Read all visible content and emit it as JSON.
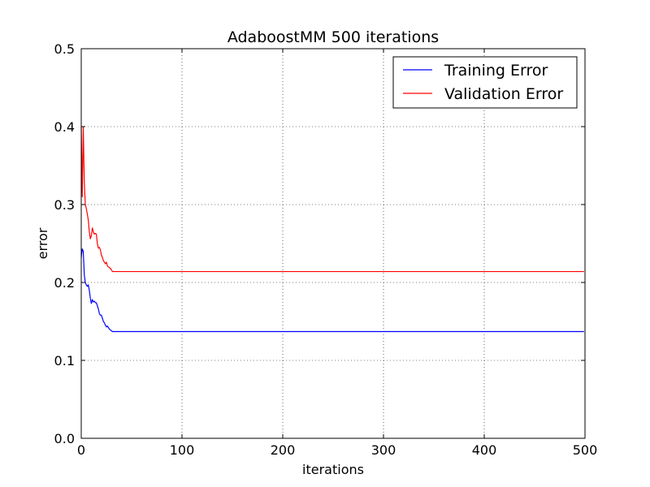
{
  "chart_data": {
    "type": "line",
    "title": "AdaboostMM 500 iterations",
    "xlabel": "iterations",
    "ylabel": "error",
    "xlim": [
      0,
      500
    ],
    "ylim": [
      0.0,
      0.5
    ],
    "xticks": [
      0,
      100,
      200,
      300,
      400,
      500
    ],
    "xtick_labels": [
      "0",
      "100",
      "200",
      "300",
      "400",
      "500"
    ],
    "yticks": [
      0.0,
      0.1,
      0.2,
      0.3,
      0.4,
      0.5
    ],
    "ytick_labels": [
      "0.0",
      "0.1",
      "0.2",
      "0.3",
      "0.4",
      "0.5"
    ],
    "grid": true,
    "legend_position": "top-right",
    "series": [
      {
        "name": "Training Error",
        "color": "#0000ff",
        "points": [
          [
            0,
            0.232
          ],
          [
            1,
            0.243
          ],
          [
            2,
            0.24
          ],
          [
            3,
            0.21
          ],
          [
            4,
            0.2
          ],
          [
            5,
            0.197
          ],
          [
            6,
            0.195
          ],
          [
            7,
            0.197
          ],
          [
            8,
            0.19
          ],
          [
            9,
            0.18
          ],
          [
            10,
            0.173
          ],
          [
            11,
            0.178
          ],
          [
            12,
            0.175
          ],
          [
            13,
            0.176
          ],
          [
            14,
            0.174
          ],
          [
            15,
            0.174
          ],
          [
            16,
            0.17
          ],
          [
            17,
            0.166
          ],
          [
            18,
            0.16
          ],
          [
            19,
            0.158
          ],
          [
            20,
            0.158
          ],
          [
            21,
            0.154
          ],
          [
            22,
            0.15
          ],
          [
            23,
            0.148
          ],
          [
            24,
            0.145
          ],
          [
            25,
            0.143
          ],
          [
            26,
            0.144
          ],
          [
            27,
            0.142
          ],
          [
            28,
            0.14
          ],
          [
            29,
            0.139
          ],
          [
            30,
            0.138
          ],
          [
            31,
            0.137
          ],
          [
            40,
            0.137
          ],
          [
            100,
            0.137
          ],
          [
            200,
            0.137
          ],
          [
            300,
            0.137
          ],
          [
            400,
            0.137
          ],
          [
            499,
            0.137
          ]
        ]
      },
      {
        "name": "Validation Error",
        "color": "#ff0000",
        "points": [
          [
            0,
            0.4
          ],
          [
            1,
            0.31
          ],
          [
            2,
            0.4
          ],
          [
            3,
            0.33
          ],
          [
            4,
            0.3
          ],
          [
            5,
            0.295
          ],
          [
            6,
            0.288
          ],
          [
            7,
            0.28
          ],
          [
            8,
            0.265
          ],
          [
            9,
            0.256
          ],
          [
            10,
            0.26
          ],
          [
            11,
            0.27
          ],
          [
            12,
            0.265
          ],
          [
            13,
            0.262
          ],
          [
            14,
            0.263
          ],
          [
            15,
            0.262
          ],
          [
            16,
            0.25
          ],
          [
            17,
            0.244
          ],
          [
            18,
            0.245
          ],
          [
            19,
            0.242
          ],
          [
            20,
            0.235
          ],
          [
            21,
            0.232
          ],
          [
            22,
            0.228
          ],
          [
            23,
            0.226
          ],
          [
            24,
            0.224
          ],
          [
            25,
            0.226
          ],
          [
            26,
            0.221
          ],
          [
            27,
            0.22
          ],
          [
            28,
            0.219
          ],
          [
            29,
            0.218
          ],
          [
            30,
            0.216
          ],
          [
            31,
            0.214
          ],
          [
            40,
            0.214
          ],
          [
            100,
            0.214
          ],
          [
            200,
            0.214
          ],
          [
            300,
            0.214
          ],
          [
            400,
            0.214
          ],
          [
            499,
            0.214
          ]
        ]
      }
    ]
  }
}
